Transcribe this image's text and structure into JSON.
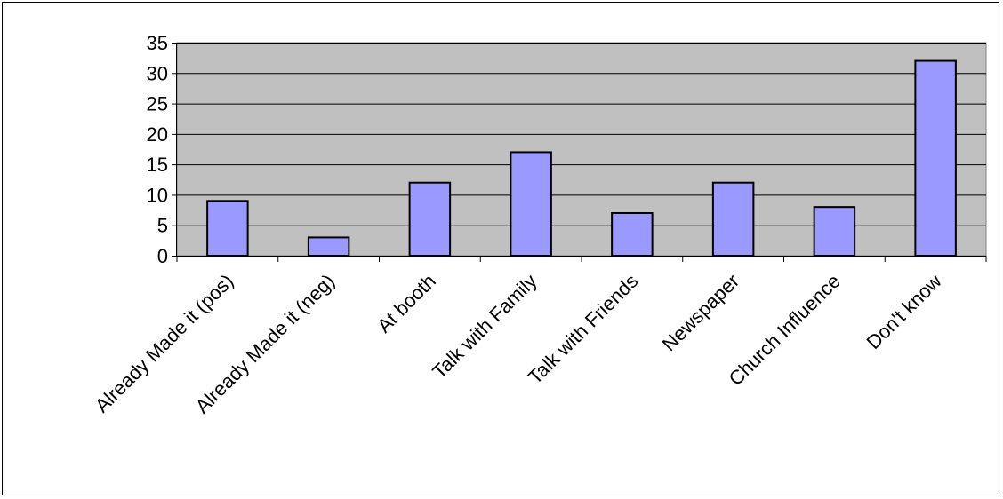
{
  "chart_data": {
    "type": "bar",
    "title": "",
    "xlabel": "",
    "ylabel": "",
    "categories": [
      "Already Made it (pos)",
      "Already Made it (neg)",
      "At booth",
      "Talk with Family",
      "Talk with Friends",
      "Newspaper",
      "Church Influence",
      "Don't know"
    ],
    "values": [
      9,
      3,
      12,
      17,
      7,
      12,
      8,
      32
    ],
    "ylim": [
      0,
      35
    ],
    "yticks": [
      0,
      5,
      10,
      15,
      20,
      25,
      30,
      35
    ],
    "grid": true,
    "legend": "none",
    "colors": {
      "bar_fill": "#9999ff",
      "plot_background": "#c0c0c0",
      "gridline": "#000000",
      "bar_stroke": "#000000"
    }
  }
}
